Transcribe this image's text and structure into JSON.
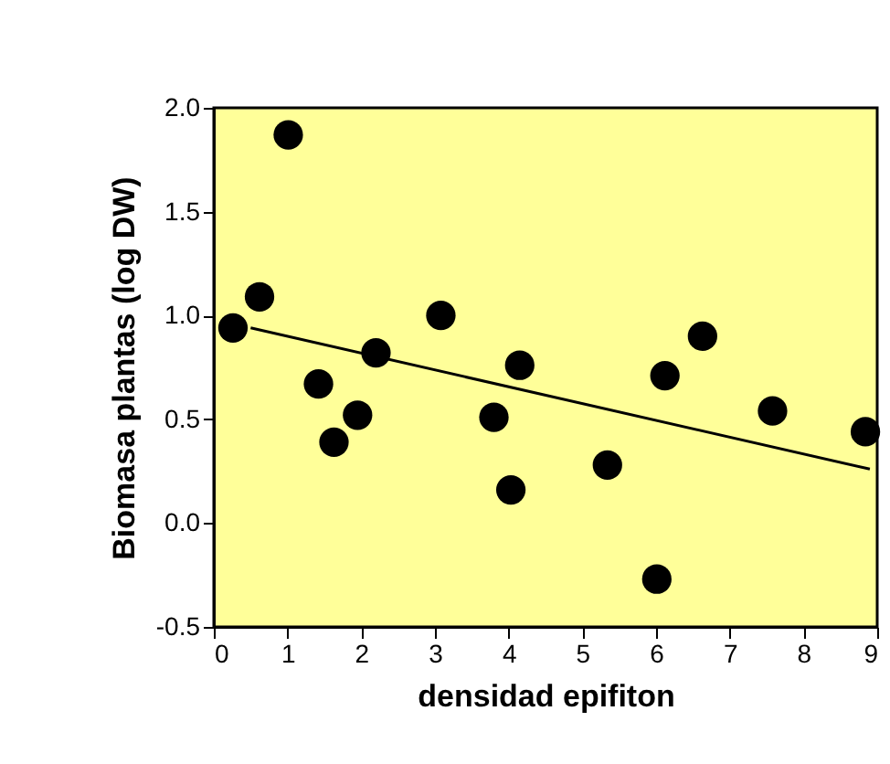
{
  "chart_data": {
    "type": "scatter",
    "xlabel": "densidad epifiton",
    "ylabel": "Biomasa plantas (log DW)",
    "xlim": [
      0,
      9
    ],
    "xticks": [
      0,
      1,
      2,
      3,
      4,
      5,
      6,
      7,
      8,
      9
    ],
    "ylim": [
      -0.5,
      2.0
    ],
    "yticks": [
      {
        "value": -0.5,
        "label": "-0.5"
      },
      {
        "value": 0,
        "label": "0.0"
      },
      {
        "value": 0.5,
        "label": "0.5"
      },
      {
        "value": 1,
        "label": "1.0"
      },
      {
        "value": 1.5,
        "label": "1.5"
      },
      {
        "value": 2,
        "label": "2.0"
      }
    ],
    "grid": false,
    "series": [
      {
        "marker": "circle",
        "color": "#000000",
        "x": [
          0.26,
          0.62,
          1.01,
          1.42,
          1.63,
          1.95,
          2.2,
          3.08,
          3.8,
          4.15,
          4.03,
          5.34,
          6.01,
          6.12,
          6.63,
          7.58,
          8.84
        ],
        "values": [
          0.94,
          1.09,
          1.87,
          0.67,
          0.39,
          0.52,
          0.82,
          1.0,
          0.51,
          0.76,
          0.16,
          0.28,
          -0.27,
          0.71,
          0.9,
          0.54,
          0.44
        ]
      },
      {
        "type": "line",
        "line_style": "solid",
        "color": "#000000",
        "x": [
          0.5,
          8.9
        ],
        "values": [
          0.94,
          0.26
        ]
      }
    ]
  }
}
